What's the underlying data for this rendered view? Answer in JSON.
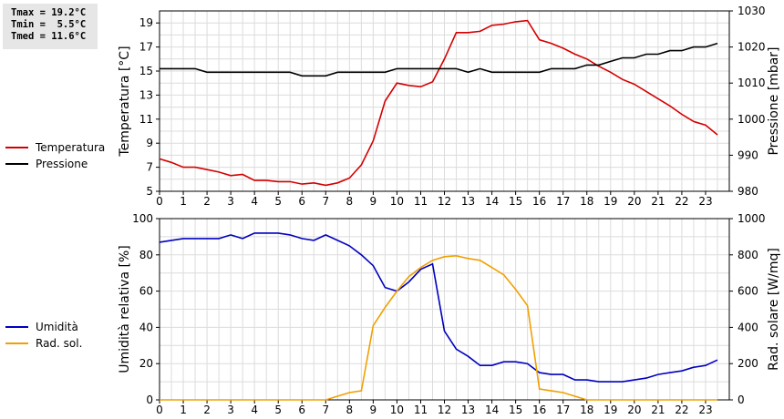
{
  "stats": {
    "tmax": "Tmax = 19.2°C",
    "tmin": "Tmin =  5.5°C",
    "tmed": "Tmed = 11.6°C"
  },
  "colors": {
    "temperature": "#d40000",
    "pressure": "#000000",
    "humidity": "#0000c0",
    "radiation": "#f0a000",
    "grid": "#dcdcdc",
    "stats_bg": "#e6e6e6"
  },
  "chart_data": [
    {
      "type": "line",
      "x_ticks": [
        0,
        1,
        2,
        3,
        4,
        5,
        6,
        7,
        8,
        9,
        10,
        11,
        12,
        13,
        14,
        15,
        16,
        17,
        18,
        19,
        20,
        21,
        22,
        23
      ],
      "xlim": [
        0,
        24
      ],
      "ylabel": "Temperatura [°C]",
      "y_ticks": [
        5,
        7,
        9,
        11,
        13,
        15,
        17,
        19
      ],
      "ylim": [
        5,
        20
      ],
      "ylabel_right": "Pressione [mbar]",
      "y2_ticks": [
        980,
        990,
        1000,
        1010,
        1020,
        1030
      ],
      "y2lim": [
        980,
        1030
      ],
      "grid": true,
      "legend_position": "left",
      "series": [
        {
          "name": "Temperatura",
          "axis": "left",
          "x": [
            0,
            0.5,
            1,
            1.5,
            2,
            2.5,
            3,
            3.5,
            4,
            4.5,
            5,
            5.5,
            6,
            6.5,
            7,
            7.5,
            8,
            8.5,
            9,
            9.5,
            10,
            10.5,
            11,
            11.5,
            12,
            12.5,
            13,
            13.5,
            14,
            14.5,
            15,
            15.5,
            16,
            16.5,
            17,
            17.5,
            18,
            18.5,
            19,
            19.5,
            20,
            20.5,
            21,
            21.5,
            22,
            22.5,
            23,
            23.5
          ],
          "y": [
            7.7,
            7.4,
            7.0,
            7.0,
            6.8,
            6.6,
            6.3,
            6.4,
            5.9,
            5.9,
            5.8,
            5.8,
            5.6,
            5.7,
            5.5,
            5.7,
            6.1,
            7.2,
            9.2,
            12.5,
            14.0,
            13.8,
            13.7,
            14.1,
            16.0,
            18.2,
            18.2,
            18.3,
            18.8,
            18.9,
            19.1,
            19.2,
            17.6,
            17.3,
            16.9,
            16.4,
            16.0,
            15.4,
            14.9,
            14.3,
            13.9,
            13.3,
            12.7,
            12.1,
            11.4,
            10.8,
            10.5,
            9.7
          ]
        },
        {
          "name": "Pressione",
          "axis": "right",
          "x": [
            0,
            0.5,
            1,
            1.5,
            2,
            2.5,
            3,
            3.5,
            4,
            4.5,
            5,
            5.5,
            6,
            6.5,
            7,
            7.5,
            8,
            8.5,
            9,
            9.5,
            10,
            10.5,
            11,
            11.5,
            12,
            12.5,
            13,
            13.5,
            14,
            14.5,
            15,
            15.5,
            16,
            16.5,
            17,
            17.5,
            18,
            18.5,
            19,
            19.5,
            20,
            20.5,
            21,
            21.5,
            22,
            22.5,
            23,
            23.5
          ],
          "y": [
            1014,
            1014,
            1014,
            1014,
            1013,
            1013,
            1013,
            1013,
            1013,
            1013,
            1013,
            1013,
            1012,
            1012,
            1012,
            1013,
            1013,
            1013,
            1013,
            1013,
            1014,
            1014,
            1014,
            1014,
            1014,
            1014,
            1013,
            1014,
            1013,
            1013,
            1013,
            1013,
            1013,
            1014,
            1014,
            1014,
            1015,
            1015,
            1016,
            1017,
            1017,
            1018,
            1018,
            1019,
            1019,
            1020,
            1020,
            1021
          ]
        }
      ]
    },
    {
      "type": "line",
      "x_ticks": [
        0,
        1,
        2,
        3,
        4,
        5,
        6,
        7,
        8,
        9,
        10,
        11,
        12,
        13,
        14,
        15,
        16,
        17,
        18,
        19,
        20,
        21,
        22,
        23
      ],
      "xlim": [
        0,
        24
      ],
      "ylabel": "Umidità relativa [%]",
      "y_ticks": [
        0,
        20,
        40,
        60,
        80,
        100
      ],
      "ylim": [
        0,
        100
      ],
      "ylabel_right": "Rad. solare [W/mq]",
      "y2_ticks": [
        0,
        200,
        400,
        600,
        800,
        1000
      ],
      "y2lim": [
        0,
        1000
      ],
      "grid": true,
      "legend_position": "left",
      "series": [
        {
          "name": "Umidità",
          "axis": "left",
          "x": [
            0,
            0.5,
            1,
            1.5,
            2,
            2.5,
            3,
            3.5,
            4,
            4.5,
            5,
            5.5,
            6,
            6.5,
            7,
            7.5,
            8,
            8.5,
            9,
            9.5,
            10,
            10.5,
            11,
            11.5,
            12,
            12.5,
            13,
            13.5,
            14,
            14.5,
            15,
            15.5,
            16,
            16.5,
            17,
            17.5,
            18,
            18.5,
            19,
            19.5,
            20,
            20.5,
            21,
            21.5,
            22,
            22.5,
            23,
            23.5
          ],
          "y": [
            87,
            88,
            89,
            89,
            89,
            89,
            91,
            89,
            92,
            92,
            92,
            91,
            89,
            88,
            91,
            88,
            85,
            80,
            74,
            62,
            60,
            65,
            72,
            75,
            38,
            28,
            24,
            19,
            19,
            21,
            21,
            20,
            15,
            14,
            14,
            11,
            11,
            10,
            10,
            10,
            11,
            12,
            14,
            15,
            16,
            18,
            19,
            22
          ]
        },
        {
          "name": "Rad. sol.",
          "axis": "right",
          "x": [
            0,
            0.5,
            1,
            1.5,
            2,
            2.5,
            3,
            3.5,
            4,
            4.5,
            5,
            5.5,
            6,
            6.5,
            7,
            7.5,
            8,
            8.5,
            9,
            9.5,
            10,
            10.5,
            11,
            11.5,
            12,
            12.5,
            13,
            13.5,
            14,
            14.5,
            15,
            15.5,
            16,
            16.5,
            17,
            17.5,
            18,
            18.5,
            19,
            19.5,
            20,
            20.5,
            21,
            21.5,
            22,
            22.5,
            23,
            23.5
          ],
          "y": [
            0,
            0,
            0,
            0,
            0,
            0,
            0,
            0,
            0,
            0,
            0,
            0,
            0,
            0,
            0,
            20,
            40,
            50,
            410,
            510,
            600,
            680,
            730,
            770,
            790,
            795,
            780,
            770,
            730,
            690,
            610,
            520,
            60,
            50,
            40,
            20,
            0,
            0,
            0,
            0,
            0,
            0,
            0,
            0,
            0,
            0,
            0,
            0
          ]
        }
      ]
    }
  ]
}
